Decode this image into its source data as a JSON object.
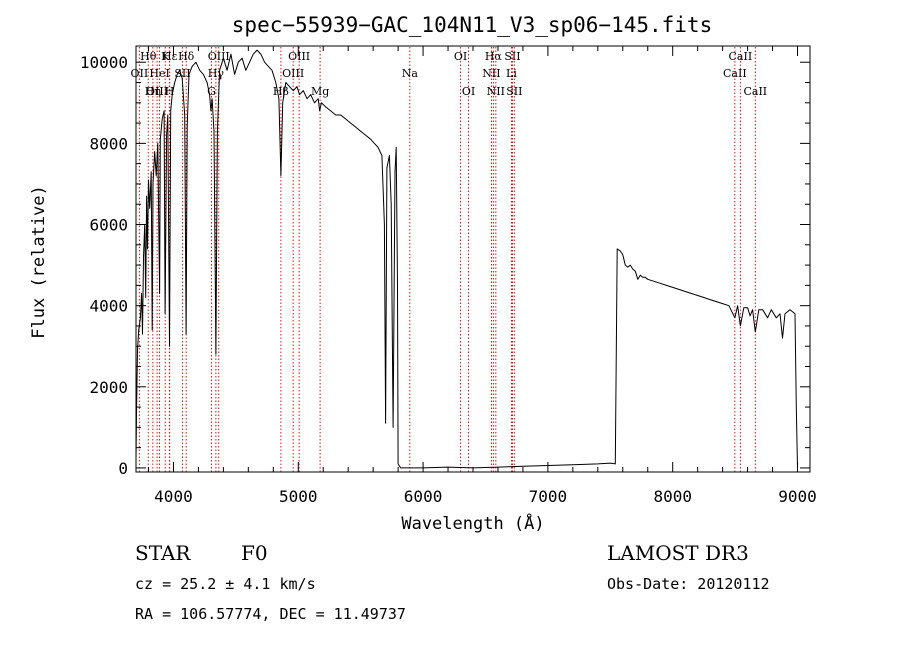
{
  "chart_data": {
    "type": "line",
    "title": "spec−55939−GAC_104N11_V3_sp06−145.fits",
    "xlabel": "Wavelength (Å)",
    "ylabel": "Flux (relative)",
    "xlim": [
      3700,
      9100
    ],
    "ylim": [
      -100,
      10400
    ],
    "x_ticks": [
      4000,
      5000,
      6000,
      7000,
      8000,
      9000
    ],
    "y_ticks": [
      0,
      2000,
      4000,
      6000,
      8000,
      10000
    ],
    "grid": false,
    "series": [
      {
        "name": "flux",
        "points": [
          [
            3700,
            200
          ],
          [
            3705,
            1500
          ],
          [
            3712,
            2900
          ],
          [
            3722,
            3400
          ],
          [
            3735,
            3700
          ],
          [
            3745,
            4300
          ],
          [
            3752,
            3300
          ],
          [
            3760,
            5200
          ],
          [
            3770,
            6000
          ],
          [
            3778,
            4200
          ],
          [
            3785,
            6700
          ],
          [
            3792,
            5400
          ],
          [
            3800,
            7100
          ],
          [
            3810,
            6400
          ],
          [
            3822,
            7300
          ],
          [
            3830,
            3400
          ],
          [
            3836,
            7000
          ],
          [
            3850,
            7800
          ],
          [
            3862,
            7200
          ],
          [
            3875,
            8000
          ],
          [
            3889,
            4300
          ],
          [
            3895,
            8100
          ],
          [
            3910,
            8600
          ],
          [
            3925,
            8800
          ],
          [
            3933,
            3800
          ],
          [
            3945,
            8200
          ],
          [
            3955,
            8700
          ],
          [
            3968,
            3000
          ],
          [
            3978,
            8800
          ],
          [
            3990,
            9200
          ],
          [
            4010,
            9500
          ],
          [
            4030,
            9700
          ],
          [
            4050,
            9800
          ],
          [
            4070,
            9600
          ],
          [
            4090,
            8700
          ],
          [
            4101,
            3300
          ],
          [
            4110,
            8400
          ],
          [
            4125,
            9700
          ],
          [
            4150,
            9900
          ],
          [
            4180,
            10000
          ],
          [
            4210,
            9800
          ],
          [
            4240,
            9700
          ],
          [
            4270,
            9500
          ],
          [
            4290,
            9200
          ],
          [
            4300,
            8800
          ],
          [
            4310,
            9100
          ],
          [
            4325,
            8300
          ],
          [
            4340,
            2800
          ],
          [
            4352,
            8300
          ],
          [
            4370,
            9800
          ],
          [
            4400,
            10100
          ],
          [
            4430,
            9800
          ],
          [
            4460,
            10200
          ],
          [
            4490,
            9700
          ],
          [
            4520,
            10000
          ],
          [
            4550,
            10100
          ],
          [
            4580,
            9800
          ],
          [
            4610,
            10000
          ],
          [
            4640,
            10200
          ],
          [
            4670,
            10300
          ],
          [
            4700,
            10200
          ],
          [
            4730,
            10000
          ],
          [
            4760,
            9900
          ],
          [
            4790,
            9800
          ],
          [
            4820,
            9500
          ],
          [
            4845,
            9100
          ],
          [
            4861,
            7200
          ],
          [
            4875,
            9000
          ],
          [
            4900,
            9500
          ],
          [
            4930,
            9400
          ],
          [
            4960,
            9300
          ],
          [
            4990,
            9400
          ],
          [
            5010,
            9200
          ],
          [
            5040,
            9300
          ],
          [
            5070,
            9100
          ],
          [
            5100,
            9200
          ],
          [
            5130,
            9000
          ],
          [
            5160,
            9100
          ],
          [
            5172,
            8800
          ],
          [
            5185,
            9000
          ],
          [
            5220,
            8900
          ],
          [
            5260,
            8800
          ],
          [
            5300,
            8700
          ],
          [
            5340,
            8700
          ],
          [
            5380,
            8600
          ],
          [
            5420,
            8500
          ],
          [
            5460,
            8400
          ],
          [
            5500,
            8300
          ],
          [
            5540,
            8200
          ],
          [
            5580,
            8100
          ],
          [
            5610,
            8000
          ],
          [
            5640,
            7900
          ],
          [
            5670,
            7700
          ],
          [
            5690,
            6000
          ],
          [
            5700,
            1100
          ],
          [
            5710,
            7400
          ],
          [
            5730,
            7700
          ],
          [
            5745,
            6500
          ],
          [
            5760,
            1000
          ],
          [
            5775,
            7300
          ],
          [
            5785,
            7900
          ],
          [
            5795,
            4500
          ],
          [
            5800,
            100
          ],
          [
            5820,
            0
          ],
          [
            6000,
            0
          ],
          [
            6200,
            20
          ],
          [
            6400,
            0
          ],
          [
            6600,
            20
          ],
          [
            6800,
            40
          ],
          [
            7000,
            60
          ],
          [
            7200,
            80
          ],
          [
            7400,
            100
          ],
          [
            7500,
            120
          ],
          [
            7540,
            100
          ],
          [
            7555,
            5400
          ],
          [
            7580,
            5350
          ],
          [
            7600,
            5250
          ],
          [
            7620,
            5000
          ],
          [
            7640,
            4950
          ],
          [
            7660,
            5000
          ],
          [
            7680,
            4900
          ],
          [
            7700,
            4850
          ],
          [
            7720,
            4650
          ],
          [
            7740,
            4750
          ],
          [
            7760,
            4700
          ],
          [
            7780,
            4700
          ],
          [
            7800,
            4650
          ],
          [
            7850,
            4600
          ],
          [
            7900,
            4550
          ],
          [
            7950,
            4500
          ],
          [
            8000,
            4450
          ],
          [
            8050,
            4400
          ],
          [
            8100,
            4350
          ],
          [
            8150,
            4300
          ],
          [
            8200,
            4250
          ],
          [
            8250,
            4200
          ],
          [
            8300,
            4150
          ],
          [
            8350,
            4100
          ],
          [
            8400,
            4050
          ],
          [
            8450,
            4000
          ],
          [
            8498,
            3700
          ],
          [
            8520,
            4000
          ],
          [
            8542,
            3500
          ],
          [
            8570,
            3950
          ],
          [
            8600,
            3950
          ],
          [
            8620,
            3750
          ],
          [
            8640,
            3900
          ],
          [
            8662,
            3350
          ],
          [
            8690,
            3900
          ],
          [
            8720,
            3900
          ],
          [
            8760,
            3700
          ],
          [
            8790,
            3900
          ],
          [
            8830,
            3700
          ],
          [
            8860,
            3800
          ],
          [
            8880,
            3200
          ],
          [
            8900,
            3800
          ],
          [
            8940,
            3900
          ],
          [
            8980,
            3800
          ],
          [
            8990,
            1500
          ],
          [
            9000,
            0
          ]
        ]
      }
    ],
    "spectral_lines": [
      {
        "label": "Hθ",
        "wl": 3798,
        "row": 1
      },
      {
        "label": "OII",
        "wl": 3727,
        "row": 2
      },
      {
        "label": "OIII",
        "wl": 3869,
        "row": 3
      },
      {
        "label": "Hη",
        "wl": 3835,
        "row": 3
      },
      {
        "label": "HeI",
        "wl": 3889,
        "row": 2
      },
      {
        "label": "K",
        "wl": 3934,
        "row": 1
      },
      {
        "label": "H",
        "wl": 3969,
        "row": 3
      },
      {
        "label": "Hε",
        "wl": 3970,
        "row": 1
      },
      {
        "label": "Hδ",
        "wl": 4102,
        "row": 1
      },
      {
        "label": "SII",
        "wl": 4072,
        "row": 2
      },
      {
        "label": "OIII",
        "wl": 4363,
        "row": 1
      },
      {
        "label": "Hγ",
        "wl": 4340,
        "row": 2
      },
      {
        "label": "G",
        "wl": 4305,
        "row": 3
      },
      {
        "label": "OIII",
        "wl": 5007,
        "row": 1
      },
      {
        "label": "OIII",
        "wl": 4959,
        "row": 2
      },
      {
        "label": "Hβ",
        "wl": 4861,
        "row": 3
      },
      {
        "label": "Mg",
        "wl": 5175,
        "row": 3
      },
      {
        "label": "Na",
        "wl": 5894,
        "row": 2
      },
      {
        "label": "OI",
        "wl": 6300,
        "row": 1
      },
      {
        "label": "OI",
        "wl": 6364,
        "row": 3
      },
      {
        "label": "Hα",
        "wl": 6563,
        "row": 1
      },
      {
        "label": "SII",
        "wl": 6716,
        "row": 1
      },
      {
        "label": "NII",
        "wl": 6548,
        "row": 2
      },
      {
        "label": "Li",
        "wl": 6708,
        "row": 2
      },
      {
        "label": "NII",
        "wl": 6583,
        "row": 3
      },
      {
        "label": "SII",
        "wl": 6731,
        "row": 3
      },
      {
        "label": "CaII",
        "wl": 8542,
        "row": 1
      },
      {
        "label": "CaII",
        "wl": 8498,
        "row": 2
      },
      {
        "label": "CaII",
        "wl": 8662,
        "row": 3
      }
    ]
  },
  "info": {
    "object_class": "STAR",
    "subclass": "F0",
    "survey": "LAMOST DR3",
    "cz": "cz = 25.2 ± 4.1 km/s",
    "obs_date": "Obs-Date: 20120112",
    "coords": "RA = 106.57774, DEC =  11.49737"
  },
  "colors": {
    "line": "#000000",
    "marker": "#cc0000",
    "background": "#ffffff"
  }
}
